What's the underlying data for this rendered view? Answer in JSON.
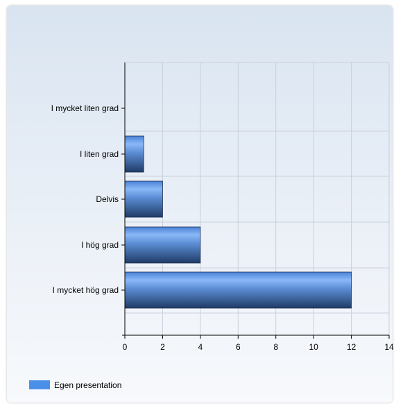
{
  "chart_data": {
    "type": "bar",
    "orientation": "horizontal",
    "categories": [
      "I mycket liten grad",
      "I liten grad",
      "Delvis",
      "I hög grad",
      "I mycket hög grad"
    ],
    "series": [
      {
        "name": "Egen presentation",
        "values": [
          0,
          1,
          2,
          4,
          12
        ]
      }
    ],
    "xlim": [
      0,
      14
    ],
    "xticks": [
      0,
      2,
      4,
      6,
      8,
      10,
      12,
      14
    ],
    "grid": true,
    "legend_position": "bottom-left",
    "colors": {
      "bar_light": "#6fa9f5",
      "bar_mid": "#4a82d8",
      "bar_dark": "#1f3b66",
      "legend": "#4a90e8"
    }
  }
}
